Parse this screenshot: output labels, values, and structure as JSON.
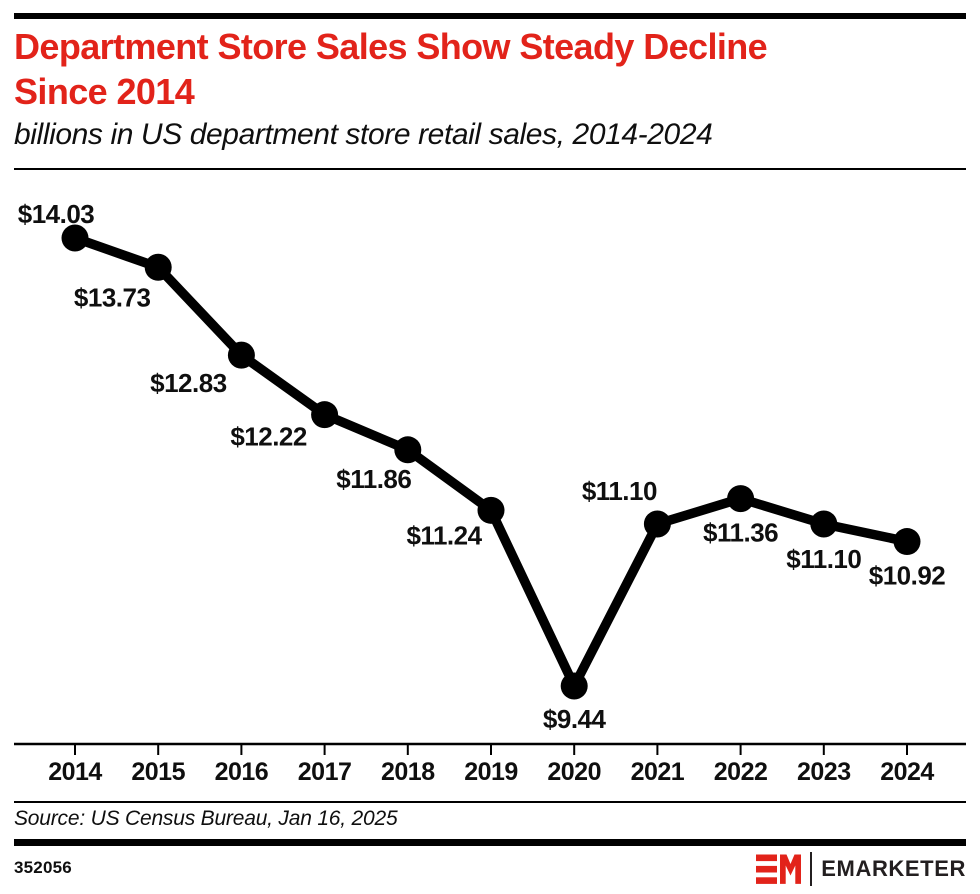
{
  "header": {
    "title_lines": [
      "Department Store Sales Show Steady Decline",
      "Since 2014"
    ],
    "subtitle": "billions in US department store retail sales, 2014-2024"
  },
  "chart_data": {
    "type": "line",
    "title": "Department Store Sales Show Steady Decline Since 2014",
    "subtitle": "billions in US department store retail sales, 2014-2024",
    "x": [
      "2014",
      "2015",
      "2016",
      "2017",
      "2018",
      "2019",
      "2020",
      "2021",
      "2022",
      "2023",
      "2024"
    ],
    "values": [
      14.03,
      13.73,
      12.83,
      12.22,
      11.86,
      11.24,
      9.44,
      11.1,
      11.36,
      11.1,
      10.92
    ],
    "point_labels": [
      "$14.03",
      "$13.73",
      "$12.83",
      "$12.22",
      "$11.86",
      "$11.24",
      "$9.44",
      "$11.10",
      "$11.36",
      "$11.10",
      "$10.92"
    ],
    "xlabel": "",
    "ylabel": "",
    "ylim_implied": [
      9.44,
      14.03
    ],
    "grid": false,
    "legend": "none",
    "line_color": "#000000",
    "marker": "circle",
    "marker_color": "#000000",
    "axis_color": "#000000"
  },
  "footer": {
    "source": "Source: US Census Bureau, Jan 16, 2025",
    "chart_number": "352056",
    "brand_name": "EMARKETER"
  },
  "colors": {
    "title_red": "#e2231a",
    "brand_red": "#e2231a",
    "text_black": "#0f0f0f",
    "background": "#ffffff"
  }
}
